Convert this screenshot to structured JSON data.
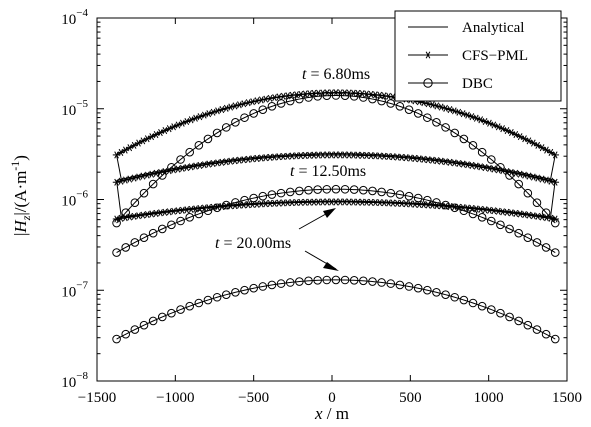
{
  "chart_data": {
    "type": "line",
    "xlabel_var": "x",
    "xlabel_unit": " / m",
    "ylabel_text": "|H_z|/(A·m^-1)",
    "xlim": [
      -1500,
      1500
    ],
    "ylim": [
      1e-08,
      0.0001
    ],
    "yscale": "log",
    "x_ticks": [
      -1500,
      -1000,
      -500,
      0,
      500,
      1000,
      1500
    ],
    "x_tick_labels": [
      "−1500",
      "−1000",
      "−500",
      "0",
      "500",
      "1000",
      "1500"
    ],
    "y_ticks": [
      1e-08,
      1e-07,
      1e-06,
      1e-05,
      0.0001
    ],
    "y_tick_labels": [
      {
        "base": "10",
        "exp": "−8"
      },
      {
        "base": "10",
        "exp": "−7"
      },
      {
        "base": "10",
        "exp": "−6"
      },
      {
        "base": "10",
        "exp": "−5"
      },
      {
        "base": "10",
        "exp": "−4"
      }
    ],
    "grid": false,
    "legend_position": "top-right",
    "legend": [
      {
        "label": "Analytical",
        "marker": "none"
      },
      {
        "label": "CFS−PML",
        "marker": "asterisk"
      },
      {
        "label": "DBC",
        "marker": "circle"
      }
    ],
    "x_range": [
      -1375,
      1425
    ],
    "series": [
      {
        "time": "6.80ms",
        "method": "Analytical",
        "marker": "none",
        "center": 1.5e-05,
        "edge": 3.1e-06
      },
      {
        "time": "6.80ms",
        "method": "CFS-PML",
        "marker": "asterisk",
        "center": 1.5e-05,
        "edge": 3.1e-06
      },
      {
        "time": "6.80ms",
        "method": "DBC",
        "marker": "circle",
        "center": 1.4e-05,
        "edge": 5.5e-07
      },
      {
        "time": "12.50ms",
        "method": "Analytical",
        "marker": "none",
        "center": 3.2e-06,
        "edge": 1.62e-06
      },
      {
        "time": "12.50ms",
        "method": "CFS-PML",
        "marker": "asterisk",
        "center": 3.1e-06,
        "edge": 1.55e-06
      },
      {
        "time": "12.50ms",
        "method": "DBC",
        "marker": "circle",
        "center": 1.3e-06,
        "edge": 2.6e-07
      },
      {
        "time": "20.00ms",
        "method": "Analytical",
        "marker": "none",
        "center": 9.6e-07,
        "edge": 6.3e-07
      },
      {
        "time": "20.00ms",
        "method": "CFS-PML",
        "marker": "asterisk",
        "center": 9.4e-07,
        "edge": 6.1e-07
      },
      {
        "time": "20.00ms",
        "method": "DBC",
        "marker": "circle",
        "center": 1.3e-07,
        "edge": 2.9e-08
      }
    ],
    "annotations": [
      {
        "prefix": "t",
        "text": " = 6.80ms"
      },
      {
        "prefix": "t",
        "text": " = 12.50ms"
      },
      {
        "prefix": "t",
        "text": " = 20.00ms"
      }
    ]
  }
}
